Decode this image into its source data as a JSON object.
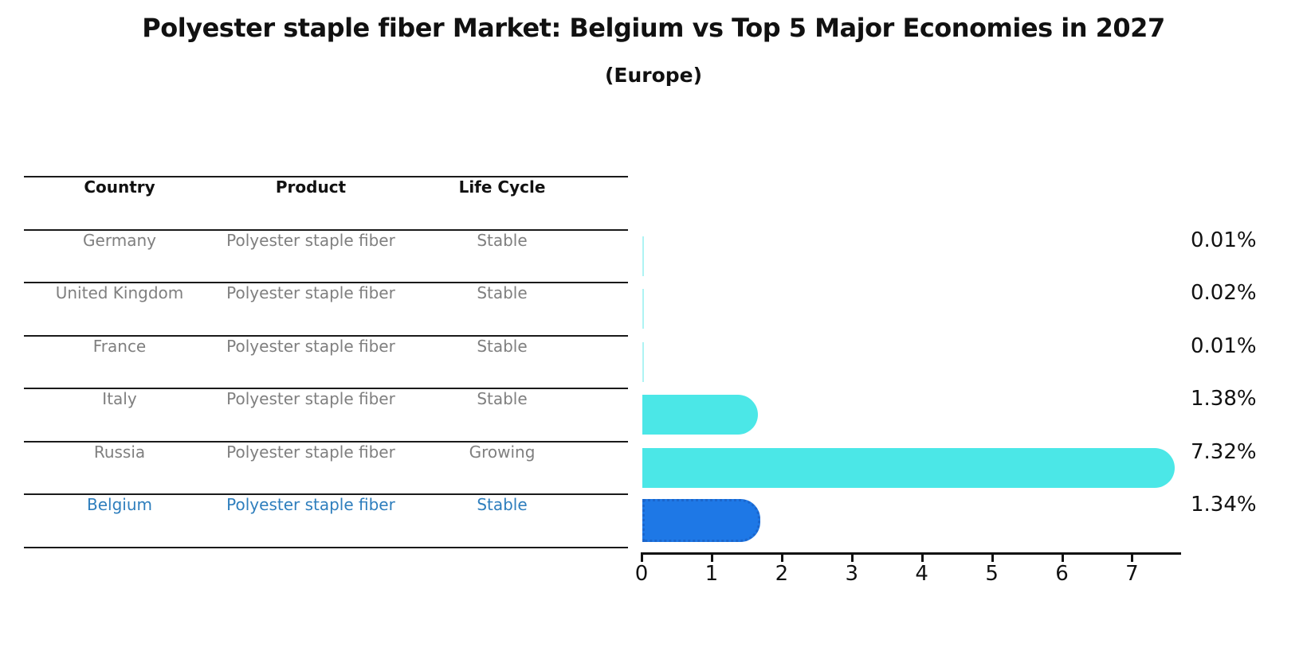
{
  "title": "Polyester staple fiber Market: Belgium vs Top 5 Major Economies in 2027",
  "subtitle": "(Europe)",
  "table": {
    "headers": {
      "country": "Country",
      "product": "Product",
      "life_cycle": "Life Cycle"
    },
    "rows": [
      {
        "country": "Germany",
        "product": "Polyester staple fiber",
        "life_cycle": "Stable"
      },
      {
        "country": "United Kingdom",
        "product": "Polyester staple fiber",
        "life_cycle": "Stable"
      },
      {
        "country": "France",
        "product": "Polyester staple fiber",
        "life_cycle": "Stable"
      },
      {
        "country": "Italy",
        "product": "Polyester staple fiber",
        "life_cycle": "Stable"
      },
      {
        "country": "Russia",
        "product": "Polyester staple fiber",
        "life_cycle": "Growing"
      },
      {
        "country": "Belgium",
        "product": "Polyester staple fiber",
        "life_cycle": "Stable"
      }
    ]
  },
  "chart_data": {
    "type": "bar",
    "orientation": "horizontal",
    "title": "Polyester staple fiber Market: Belgium vs Top 5 Major Economies in 2027",
    "subtitle": "(Europe)",
    "categories": [
      "Germany",
      "United Kingdom",
      "France",
      "Italy",
      "Russia",
      "Belgium"
    ],
    "values": [
      0.01,
      0.02,
      0.01,
      1.38,
      7.32,
      1.34
    ],
    "value_labels": [
      "0.01%",
      "0.02%",
      "0.01%",
      "1.38%",
      "7.32%",
      "1.34%"
    ],
    "xlim": [
      0,
      7.7
    ],
    "xticks": [
      0,
      1,
      2,
      3,
      4,
      5,
      6,
      7
    ],
    "grid": false,
    "legend": false,
    "bar_color": "#4BE7E7",
    "highlight_color": "#1E78E6",
    "highlight_category": "Belgium",
    "highlight_index": 5,
    "highlight_text_color": "#2E7EBD"
  }
}
